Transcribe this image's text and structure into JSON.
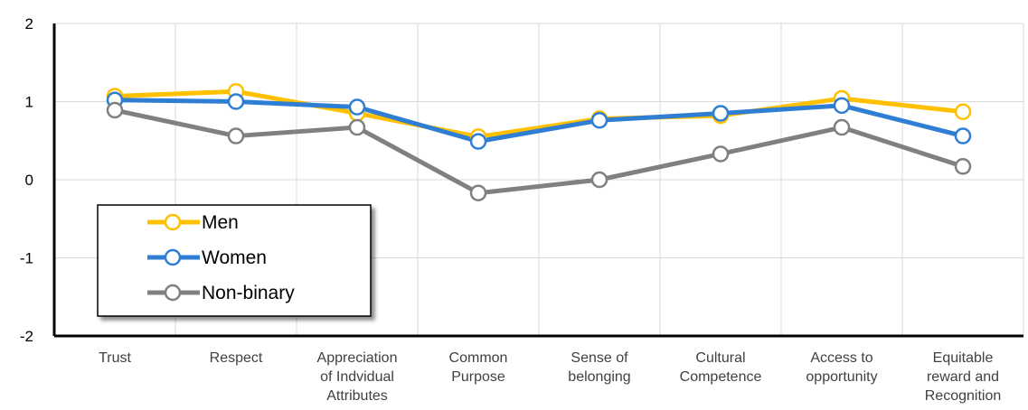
{
  "chart_data": {
    "type": "line",
    "categories": [
      [
        "Trust"
      ],
      [
        "Respect"
      ],
      [
        "Appreciation",
        "of Indvidual",
        "Attributes"
      ],
      [
        "Common",
        "Purpose"
      ],
      [
        "Sense of",
        "belonging"
      ],
      [
        "Cultural",
        "Competence"
      ],
      [
        "Access to",
        "opportunity"
      ],
      [
        "Equitable",
        "reward and",
        "Recognition"
      ]
    ],
    "ylim": [
      -2,
      2
    ],
    "yticks": [
      2,
      1,
      0,
      -1,
      -2
    ],
    "grid": true,
    "legend_position": "lower-left",
    "series": [
      {
        "name": "Men",
        "color": "#FFC000",
        "values": [
          1.07,
          1.13,
          0.85,
          0.55,
          0.78,
          0.82,
          1.04,
          0.87
        ]
      },
      {
        "name": "Women",
        "color": "#2E7ED4",
        "values": [
          1.02,
          1.0,
          0.93,
          0.49,
          0.76,
          0.85,
          0.95,
          0.56
        ]
      },
      {
        "name": "Non-binary",
        "color": "#808080",
        "values": [
          0.89,
          0.56,
          0.67,
          -0.17,
          0.0,
          0.33,
          0.67,
          0.17
        ]
      }
    ]
  }
}
